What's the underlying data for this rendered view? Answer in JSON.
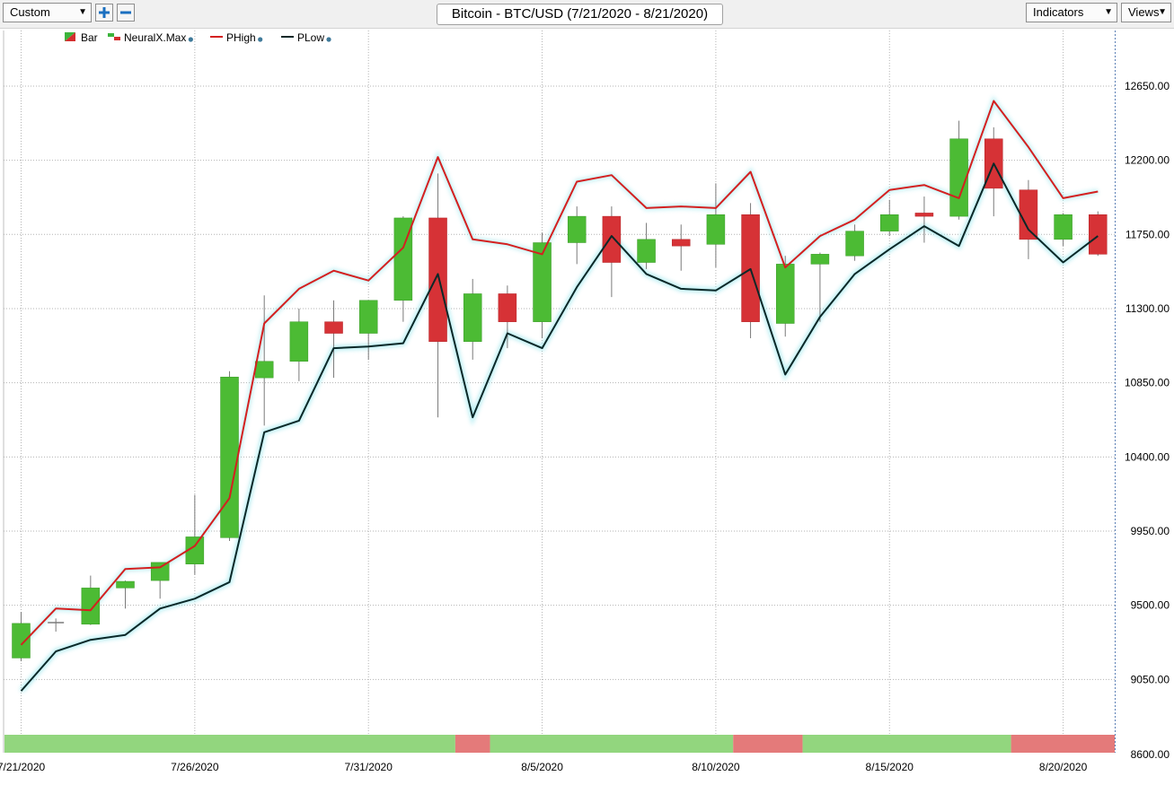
{
  "toolbar": {
    "preset": "Custom",
    "title": "Bitcoin - BTC/USD (7/21/2020 - 8/21/2020)",
    "indicators_label": "Indicators",
    "views_label": "Views"
  },
  "icons": {
    "add": "plus-icon",
    "remove": "minus-icon",
    "dropdown": "triangle-down-icon"
  },
  "chart_data": {
    "type": "candlestick",
    "legend": [
      {
        "label": "Bar",
        "color": "#d42f2f"
      },
      {
        "label": "NeuralX.Max",
        "color": "#3cb43c"
      },
      {
        "label": "PHigh",
        "color": "#d42020"
      },
      {
        "label": "PLow",
        "color": "#0a2828"
      }
    ],
    "colors": {
      "up": "#4cbb34",
      "down": "#d63236",
      "phigh": "#d42020",
      "plow": "#0a2828",
      "band_up": "#92d67e",
      "band_down": "#e47a7a"
    },
    "y_ticks": [
      "12650.00",
      "12200.00",
      "11750.00",
      "11300.00",
      "10850.00",
      "10400.00",
      "9950.00",
      "9500.00",
      "9050.00",
      "8600.00"
    ],
    "ylim": [
      8600,
      13000
    ],
    "x_ticks": [
      {
        "label": "7/21/2020",
        "day": 0
      },
      {
        "label": "7/26/2020",
        "day": 5
      },
      {
        "label": "7/31/2020",
        "day": 10
      },
      {
        "label": "8/5/2020",
        "day": 15
      },
      {
        "label": "8/10/2020",
        "day": 20
      },
      {
        "label": "8/15/2020",
        "day": 25
      },
      {
        "label": "8/20/2020",
        "day": 30
      }
    ],
    "candles": [
      {
        "date": "7/21/2020",
        "open": 9180,
        "high": 9460,
        "low": 9160,
        "close": 9390
      },
      {
        "date": "7/22/2020",
        "open": 9390,
        "high": 9420,
        "low": 9340,
        "close": 9395
      },
      {
        "date": "7/23/2020",
        "open": 9385,
        "high": 9680,
        "low": 9380,
        "close": 9605
      },
      {
        "date": "7/24/2020",
        "open": 9605,
        "high": 9650,
        "low": 9480,
        "close": 9645
      },
      {
        "date": "7/25/2020",
        "open": 9650,
        "high": 9760,
        "low": 9540,
        "close": 9760
      },
      {
        "date": "7/26/2020",
        "open": 9750,
        "high": 10170,
        "low": 9685,
        "close": 9915
      },
      {
        "date": "7/27/2020",
        "open": 9910,
        "high": 10920,
        "low": 9890,
        "close": 10885
      },
      {
        "date": "7/28/2020",
        "open": 10880,
        "high": 11380,
        "low": 10590,
        "close": 10980
      },
      {
        "date": "7/29/2020",
        "open": 10980,
        "high": 11300,
        "low": 10860,
        "close": 11220
      },
      {
        "date": "7/30/2020",
        "open": 11220,
        "high": 11350,
        "low": 10880,
        "close": 11150
      },
      {
        "date": "7/31/2020",
        "open": 11150,
        "high": 11340,
        "low": 10990,
        "close": 11350
      },
      {
        "date": "8/1/2020",
        "open": 11350,
        "high": 11860,
        "low": 11220,
        "close": 11850
      },
      {
        "date": "8/2/2020",
        "open": 11850,
        "high": 12120,
        "low": 10640,
        "close": 11100
      },
      {
        "date": "8/3/2020",
        "open": 11100,
        "high": 11480,
        "low": 10990,
        "close": 11390
      },
      {
        "date": "8/4/2020",
        "open": 11390,
        "high": 11440,
        "low": 11060,
        "close": 11220
      },
      {
        "date": "8/5/2020",
        "open": 11220,
        "high": 11760,
        "low": 11120,
        "close": 11700
      },
      {
        "date": "8/6/2020",
        "open": 11700,
        "high": 11920,
        "low": 11570,
        "close": 11860
      },
      {
        "date": "8/7/2020",
        "open": 11860,
        "high": 11920,
        "low": 11370,
        "close": 11580
      },
      {
        "date": "8/8/2020",
        "open": 11580,
        "high": 11820,
        "low": 11540,
        "close": 11720
      },
      {
        "date": "8/9/2020",
        "open": 11720,
        "high": 11810,
        "low": 11530,
        "close": 11680
      },
      {
        "date": "8/10/2020",
        "open": 11690,
        "high": 12060,
        "low": 11550,
        "close": 11870
      },
      {
        "date": "8/11/2020",
        "open": 11870,
        "high": 11940,
        "low": 11120,
        "close": 11220
      },
      {
        "date": "8/12/2020",
        "open": 11210,
        "high": 11620,
        "low": 11130,
        "close": 11570
      },
      {
        "date": "8/13/2020",
        "open": 11570,
        "high": 11640,
        "low": 11220,
        "close": 11630
      },
      {
        "date": "8/14/2020",
        "open": 11620,
        "high": 11810,
        "low": 11590,
        "close": 11770
      },
      {
        "date": "8/15/2020",
        "open": 11770,
        "high": 11960,
        "low": 11740,
        "close": 11870
      },
      {
        "date": "8/16/2020",
        "open": 11880,
        "high": 11980,
        "low": 11700,
        "close": 11860
      },
      {
        "date": "8/17/2020",
        "open": 11860,
        "high": 12440,
        "low": 11840,
        "close": 12330
      },
      {
        "date": "8/18/2020",
        "open": 12330,
        "high": 12400,
        "low": 11860,
        "close": 12030
      },
      {
        "date": "8/19/2020",
        "open": 12020,
        "high": 12080,
        "low": 11600,
        "close": 11720
      },
      {
        "date": "8/20/2020",
        "open": 11720,
        "high": 11880,
        "low": 11680,
        "close": 11870
      },
      {
        "date": "8/21/2020",
        "open": 11870,
        "high": 11890,
        "low": 11620,
        "close": 11630
      }
    ],
    "phigh": [
      9260,
      9480,
      9470,
      9720,
      9730,
      9860,
      10150,
      11210,
      11420,
      11530,
      11470,
      11670,
      12220,
      11720,
      11690,
      11630,
      12070,
      12110,
      11910,
      11920,
      11910,
      12130,
      11550,
      11740,
      11840,
      12020,
      12050,
      11970,
      12560,
      12280,
      11970,
      12010
    ],
    "plow": [
      8980,
      9220,
      9290,
      9320,
      9480,
      9540,
      9640,
      10550,
      10620,
      11060,
      11070,
      11090,
      11510,
      10640,
      11150,
      11060,
      11430,
      11740,
      11510,
      11420,
      11410,
      11540,
      10900,
      11250,
      11510,
      11660,
      11800,
      11680,
      12180,
      11780,
      11580,
      11740
    ],
    "signal_bands": [
      {
        "from": 0,
        "to": 12,
        "state": "up"
      },
      {
        "from": 13,
        "to": 13,
        "state": "down"
      },
      {
        "from": 14,
        "to": 20,
        "state": "up"
      },
      {
        "from": 21,
        "to": 22,
        "state": "down"
      },
      {
        "from": 23,
        "to": 28,
        "state": "up"
      },
      {
        "from": 29,
        "to": 31,
        "state": "down"
      }
    ]
  }
}
